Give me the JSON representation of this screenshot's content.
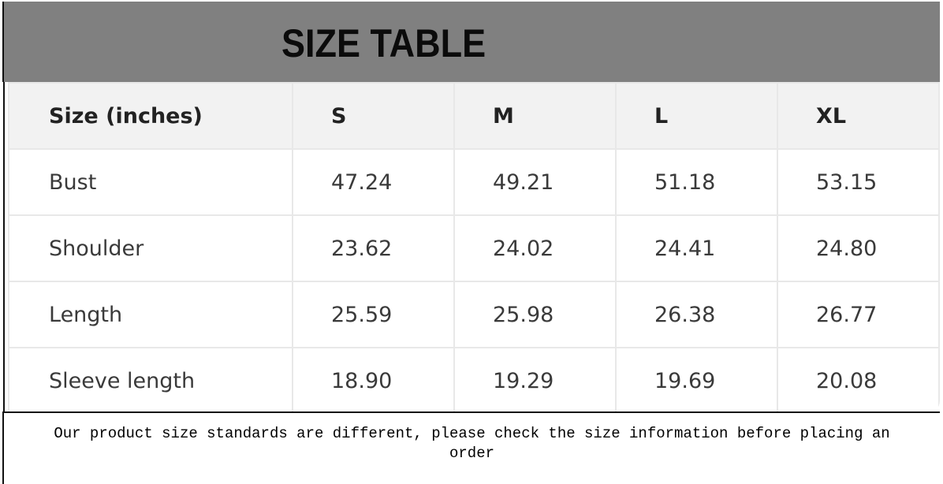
{
  "title": "SIZE TABLE",
  "table": {
    "headers": [
      "Size (inches)",
      "S",
      "M",
      "L",
      "XL"
    ],
    "rows": [
      [
        "Bust",
        "47.24",
        "49.21",
        "51.18",
        "53.15"
      ],
      [
        "Shoulder",
        "23.62",
        "24.02",
        "24.41",
        "24.80"
      ],
      [
        "Length",
        "25.59",
        "25.98",
        "26.38",
        "26.77"
      ],
      [
        "Sleeve length",
        "18.90",
        "19.29",
        "19.69",
        "20.08"
      ]
    ]
  },
  "note": "Our product size standards are different, please check the size information before placing an order",
  "colors": {
    "banner": "#808080",
    "header_row": "#f2f2f2"
  }
}
